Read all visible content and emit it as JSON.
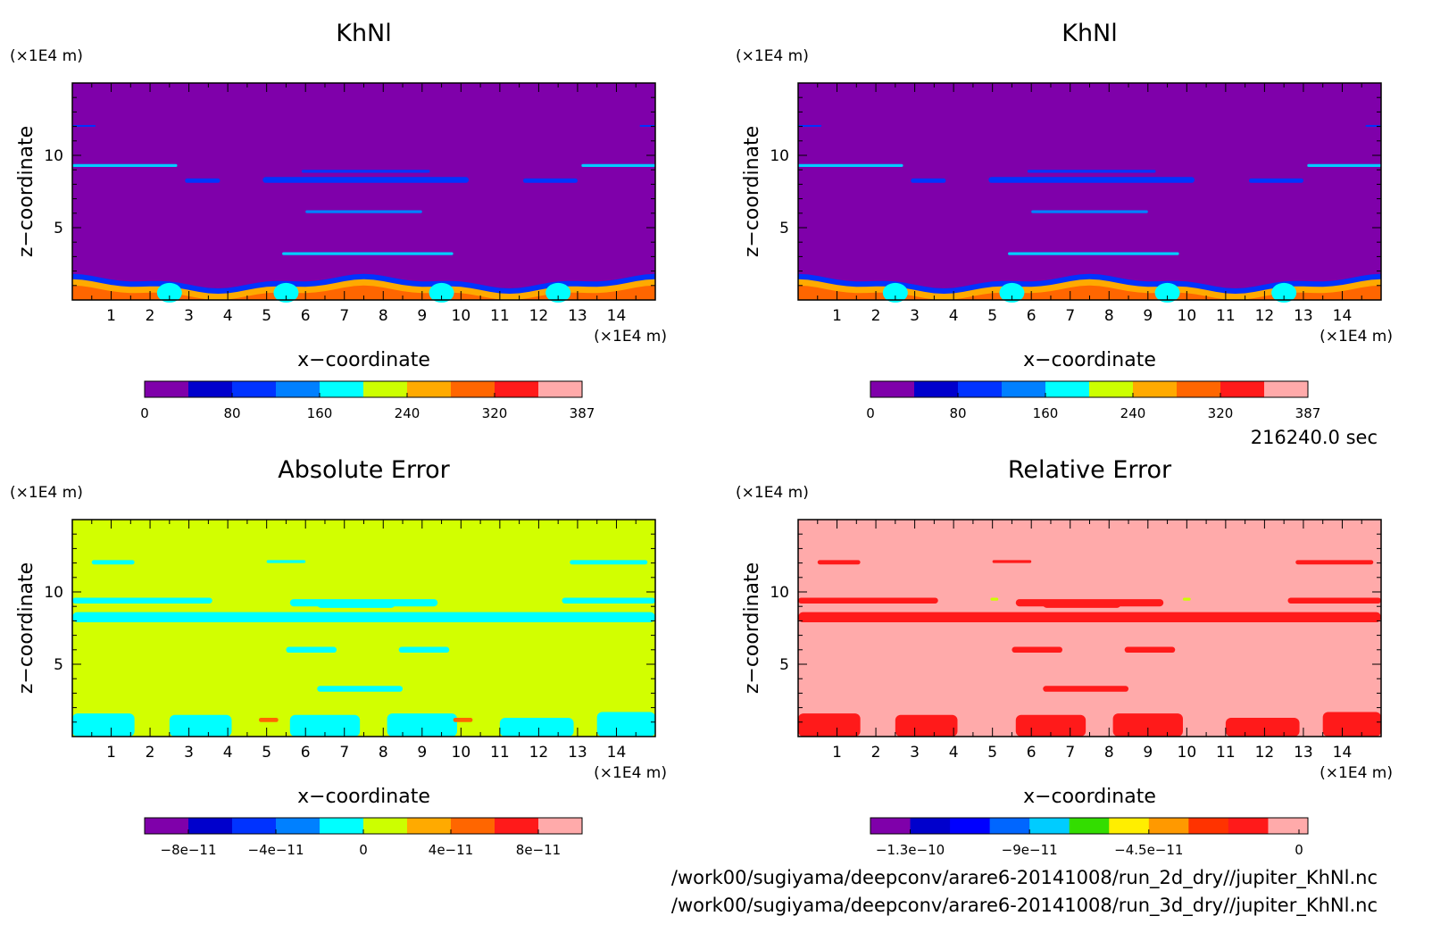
{
  "timestamp": "216240.0 sec",
  "files": [
    "/work00/sugiyama/deepconv/arare6-20141008/run_2d_dry//jupiter_KhNl.nc",
    "/work00/sugiyama/deepconv/arare6-20141008/run_3d_dry//jupiter_KhNl.nc"
  ],
  "colors": {
    "field_background_khnl": "#7f00aa",
    "field_background_abs": "#d2ff00",
    "field_background_rel": "#ffaaaa"
  },
  "chart_data": [
    {
      "type": "heatmap",
      "title": "KhNl",
      "xlabel": "x−coordinate",
      "ylabel": "z−coordinate",
      "x_unit": "(×1E4 m)",
      "y_unit": "(×1E4 m)",
      "xlim": [
        0,
        15
      ],
      "ylim": [
        0,
        15
      ],
      "x_ticks": [
        "1",
        "2",
        "3",
        "4",
        "5",
        "6",
        "7",
        "8",
        "9",
        "10",
        "11",
        "12",
        "13",
        "14"
      ],
      "y_ticks": [
        "5",
        "10"
      ],
      "colorbar": {
        "colors": [
          "#7f00aa",
          "#0000cc",
          "#0033ff",
          "#0080ff",
          "#00ffff",
          "#ccff00",
          "#ffaa00",
          "#ff6600",
          "#ff1a1a",
          "#ffaaaa"
        ],
        "labels": [
          "0",
          "80",
          "160",
          "240",
          "320",
          "387"
        ]
      },
      "features": [
        {
          "kind": "band",
          "x": [
            0,
            2.7
          ],
          "z": [
            9.2,
            9.4
          ],
          "color": "#00ccff"
        },
        {
          "kind": "band",
          "x": [
            13.1,
            15
          ],
          "z": [
            9.2,
            9.4
          ],
          "color": "#00ccff"
        },
        {
          "kind": "band",
          "x": [
            2.9,
            3.8
          ],
          "z": [
            8.1,
            8.4
          ],
          "color": "#0033ff"
        },
        {
          "kind": "band",
          "x": [
            4.9,
            10.2
          ],
          "z": [
            8.1,
            8.5
          ],
          "color": "#0033ff"
        },
        {
          "kind": "band",
          "x": [
            11.6,
            13
          ],
          "z": [
            8.1,
            8.4
          ],
          "color": "#0033ff"
        },
        {
          "kind": "band",
          "x": [
            5.9,
            9.2
          ],
          "z": [
            8.8,
            9.0
          ],
          "color": "#0033ff"
        },
        {
          "kind": "band",
          "x": [
            6,
            9
          ],
          "z": [
            6,
            6.2
          ],
          "color": "#0080ff"
        },
        {
          "kind": "band",
          "x": [
            5.4,
            9.8
          ],
          "z": [
            3.1,
            3.3
          ],
          "color": "#00ccff"
        },
        {
          "kind": "band",
          "x": [
            0,
            0.6
          ],
          "z": [
            12,
            12.1
          ],
          "color": "#0033ff"
        },
        {
          "kind": "band",
          "x": [
            14.6,
            15
          ],
          "z": [
            12,
            12.1
          ],
          "color": "#0033ff"
        }
      ]
    },
    {
      "type": "heatmap",
      "title": "KhNl",
      "xlabel": "x−coordinate",
      "ylabel": "z−coordinate",
      "x_unit": "(×1E4 m)",
      "y_unit": "(×1E4 m)",
      "xlim": [
        0,
        15
      ],
      "ylim": [
        0,
        15
      ],
      "x_ticks": [
        "1",
        "2",
        "3",
        "4",
        "5",
        "6",
        "7",
        "8",
        "9",
        "10",
        "11",
        "12",
        "13",
        "14"
      ],
      "y_ticks": [
        "5",
        "10"
      ],
      "colorbar": {
        "colors": [
          "#7f00aa",
          "#0000cc",
          "#0033ff",
          "#0080ff",
          "#00ffff",
          "#ccff00",
          "#ffaa00",
          "#ff6600",
          "#ff1a1a",
          "#ffaaaa"
        ],
        "labels": [
          "0",
          "80",
          "160",
          "240",
          "320",
          "387"
        ]
      },
      "features": [
        {
          "kind": "band",
          "x": [
            0,
            2.7
          ],
          "z": [
            9.2,
            9.4
          ],
          "color": "#00ccff"
        },
        {
          "kind": "band",
          "x": [
            13.1,
            15
          ],
          "z": [
            9.2,
            9.4
          ],
          "color": "#00ccff"
        },
        {
          "kind": "band",
          "x": [
            2.9,
            3.8
          ],
          "z": [
            8.1,
            8.4
          ],
          "color": "#0033ff"
        },
        {
          "kind": "band",
          "x": [
            4.9,
            10.2
          ],
          "z": [
            8.1,
            8.5
          ],
          "color": "#0033ff"
        },
        {
          "kind": "band",
          "x": [
            11.6,
            13
          ],
          "z": [
            8.1,
            8.4
          ],
          "color": "#0033ff"
        },
        {
          "kind": "band",
          "x": [
            5.9,
            9.2
          ],
          "z": [
            8.8,
            9.0
          ],
          "color": "#0033ff"
        },
        {
          "kind": "band",
          "x": [
            6,
            9
          ],
          "z": [
            6,
            6.2
          ],
          "color": "#0080ff"
        },
        {
          "kind": "band",
          "x": [
            5.4,
            9.8
          ],
          "z": [
            3.1,
            3.3
          ],
          "color": "#00ccff"
        },
        {
          "kind": "band",
          "x": [
            0,
            0.6
          ],
          "z": [
            12,
            12.1
          ],
          "color": "#0033ff"
        },
        {
          "kind": "band",
          "x": [
            14.6,
            15
          ],
          "z": [
            12,
            12.1
          ],
          "color": "#0033ff"
        }
      ]
    },
    {
      "type": "heatmap",
      "title": "Absolute Error",
      "xlabel": "x−coordinate",
      "ylabel": "z−coordinate",
      "x_unit": "(×1E4 m)",
      "y_unit": "(×1E4 m)",
      "xlim": [
        0,
        15
      ],
      "ylim": [
        0,
        15
      ],
      "x_ticks": [
        "1",
        "2",
        "3",
        "4",
        "5",
        "6",
        "7",
        "8",
        "9",
        "10",
        "11",
        "12",
        "13",
        "14"
      ],
      "y_ticks": [
        "5",
        "10"
      ],
      "colorbar": {
        "colors": [
          "#7f00aa",
          "#0000cc",
          "#0033ff",
          "#0080ff",
          "#00ffff",
          "#ccff00",
          "#ffaa00",
          "#ff6600",
          "#ff1a1a",
          "#ffaaaa"
        ],
        "labels": [
          "−8e−11",
          "−4e−11",
          "0",
          "4e−11",
          "8e−11"
        ]
      },
      "features": [
        {
          "kind": "band",
          "x": [
            0,
            15
          ],
          "z": [
            7.9,
            8.6
          ],
          "color": "#00ffff"
        },
        {
          "kind": "band",
          "x": [
            0,
            3.6
          ],
          "z": [
            9.2,
            9.6
          ],
          "color": "#00ffff"
        },
        {
          "kind": "band",
          "x": [
            5.6,
            9.4
          ],
          "z": [
            9.0,
            9.5
          ],
          "color": "#00ffff"
        },
        {
          "kind": "band",
          "x": [
            12.6,
            15
          ],
          "z": [
            9.2,
            9.6
          ],
          "color": "#00ffff"
        },
        {
          "kind": "band",
          "x": [
            6.3,
            8.3
          ],
          "z": [
            8.9,
            9.4
          ],
          "color": "#00ffff"
        },
        {
          "kind": "band",
          "x": [
            0.5,
            1.6
          ],
          "z": [
            11.9,
            12.2
          ],
          "color": "#00ffff"
        },
        {
          "kind": "band",
          "x": [
            5,
            6
          ],
          "z": [
            12,
            12.2
          ],
          "color": "#00ffff"
        },
        {
          "kind": "band",
          "x": [
            12.8,
            14.8
          ],
          "z": [
            11.9,
            12.2
          ],
          "color": "#00ffff"
        },
        {
          "kind": "band",
          "x": [
            5.5,
            6.8
          ],
          "z": [
            5.8,
            6.2
          ],
          "color": "#00ffff"
        },
        {
          "kind": "band",
          "x": [
            8.4,
            9.7
          ],
          "z": [
            5.8,
            6.2
          ],
          "color": "#00ffff"
        },
        {
          "kind": "band",
          "x": [
            6.3,
            8.5
          ],
          "z": [
            3.1,
            3.5
          ],
          "color": "#00ffff"
        },
        {
          "kind": "band",
          "x": [
            0,
            1.6
          ],
          "z": [
            0,
            1.6
          ],
          "color": "#00ffff"
        },
        {
          "kind": "band",
          "x": [
            2.5,
            4.1
          ],
          "z": [
            0,
            1.5
          ],
          "color": "#00ffff"
        },
        {
          "kind": "band",
          "x": [
            5.6,
            7.4
          ],
          "z": [
            0,
            1.5
          ],
          "color": "#00ffff"
        },
        {
          "kind": "band",
          "x": [
            8.1,
            9.9
          ],
          "z": [
            0,
            1.6
          ],
          "color": "#00ffff"
        },
        {
          "kind": "band",
          "x": [
            11,
            12.9
          ],
          "z": [
            0,
            1.3
          ],
          "color": "#00ffff"
        },
        {
          "kind": "band",
          "x": [
            13.5,
            15
          ],
          "z": [
            0,
            1.7
          ],
          "color": "#00ffff"
        },
        {
          "kind": "band",
          "x": [
            4.8,
            5.3
          ],
          "z": [
            1.0,
            1.3
          ],
          "color": "#ff6600"
        },
        {
          "kind": "band",
          "x": [
            9.8,
            10.3
          ],
          "z": [
            1.0,
            1.3
          ],
          "color": "#ff6600"
        }
      ]
    },
    {
      "type": "heatmap",
      "title": "Relative Error",
      "xlabel": "x−coordinate",
      "ylabel": "z−coordinate",
      "x_unit": "(×1E4 m)",
      "y_unit": "(×1E4 m)",
      "xlim": [
        0,
        15
      ],
      "ylim": [
        0,
        15
      ],
      "x_ticks": [
        "1",
        "2",
        "3",
        "4",
        "5",
        "6",
        "7",
        "8",
        "9",
        "10",
        "11",
        "12",
        "13",
        "14"
      ],
      "y_ticks": [
        "5",
        "10"
      ],
      "colorbar": {
        "colors": [
          "#7f00aa",
          "#0000cc",
          "#0000ff",
          "#0066ff",
          "#00ccff",
          "#33dd00",
          "#ffee00",
          "#ff9900",
          "#ff3300",
          "#ff1a1a",
          "#ffaaaa"
        ],
        "labels": [
          "−1.3e−10",
          "−9e−11",
          "−4.5e−11",
          "0"
        ]
      },
      "features": [
        {
          "kind": "band",
          "x": [
            0,
            15
          ],
          "z": [
            7.9,
            8.6
          ],
          "color": "#ff1a1a"
        },
        {
          "kind": "band",
          "x": [
            0,
            3.6
          ],
          "z": [
            9.2,
            9.6
          ],
          "color": "#ff1a1a"
        },
        {
          "kind": "band",
          "x": [
            5.6,
            9.4
          ],
          "z": [
            9.0,
            9.5
          ],
          "color": "#ff1a1a"
        },
        {
          "kind": "band",
          "x": [
            12.6,
            15
          ],
          "z": [
            9.2,
            9.6
          ],
          "color": "#ff1a1a"
        },
        {
          "kind": "band",
          "x": [
            6.3,
            8.3
          ],
          "z": [
            8.9,
            9.4
          ],
          "color": "#ff1a1a"
        },
        {
          "kind": "band",
          "x": [
            0.5,
            1.6
          ],
          "z": [
            11.9,
            12.2
          ],
          "color": "#ff1a1a"
        },
        {
          "kind": "band",
          "x": [
            5,
            6
          ],
          "z": [
            12,
            12.2
          ],
          "color": "#ff1a1a"
        },
        {
          "kind": "band",
          "x": [
            12.8,
            14.8
          ],
          "z": [
            11.9,
            12.2
          ],
          "color": "#ff1a1a"
        },
        {
          "kind": "band",
          "x": [
            5.5,
            6.8
          ],
          "z": [
            5.8,
            6.2
          ],
          "color": "#ff1a1a"
        },
        {
          "kind": "band",
          "x": [
            8.4,
            9.7
          ],
          "z": [
            5.8,
            6.2
          ],
          "color": "#ff1a1a"
        },
        {
          "kind": "band",
          "x": [
            6.3,
            8.5
          ],
          "z": [
            3.1,
            3.5
          ],
          "color": "#ff1a1a"
        },
        {
          "kind": "band",
          "x": [
            0,
            1.6
          ],
          "z": [
            0,
            1.6
          ],
          "color": "#ff1a1a"
        },
        {
          "kind": "band",
          "x": [
            2.5,
            4.1
          ],
          "z": [
            0,
            1.5
          ],
          "color": "#ff1a1a"
        },
        {
          "kind": "band",
          "x": [
            5.6,
            7.4
          ],
          "z": [
            0,
            1.5
          ],
          "color": "#ff1a1a"
        },
        {
          "kind": "band",
          "x": [
            8.1,
            9.9
          ],
          "z": [
            0,
            1.6
          ],
          "color": "#ff1a1a"
        },
        {
          "kind": "band",
          "x": [
            11,
            12.9
          ],
          "z": [
            0,
            1.3
          ],
          "color": "#ff1a1a"
        },
        {
          "kind": "band",
          "x": [
            13.5,
            15
          ],
          "z": [
            0,
            1.7
          ],
          "color": "#ff1a1a"
        },
        {
          "kind": "band",
          "x": [
            4.95,
            5.15
          ],
          "z": [
            9.4,
            9.6
          ],
          "color": "#ccff00"
        },
        {
          "kind": "band",
          "x": [
            9.9,
            10.1
          ],
          "z": [
            9.4,
            9.6
          ],
          "color": "#ccff00"
        }
      ]
    }
  ]
}
